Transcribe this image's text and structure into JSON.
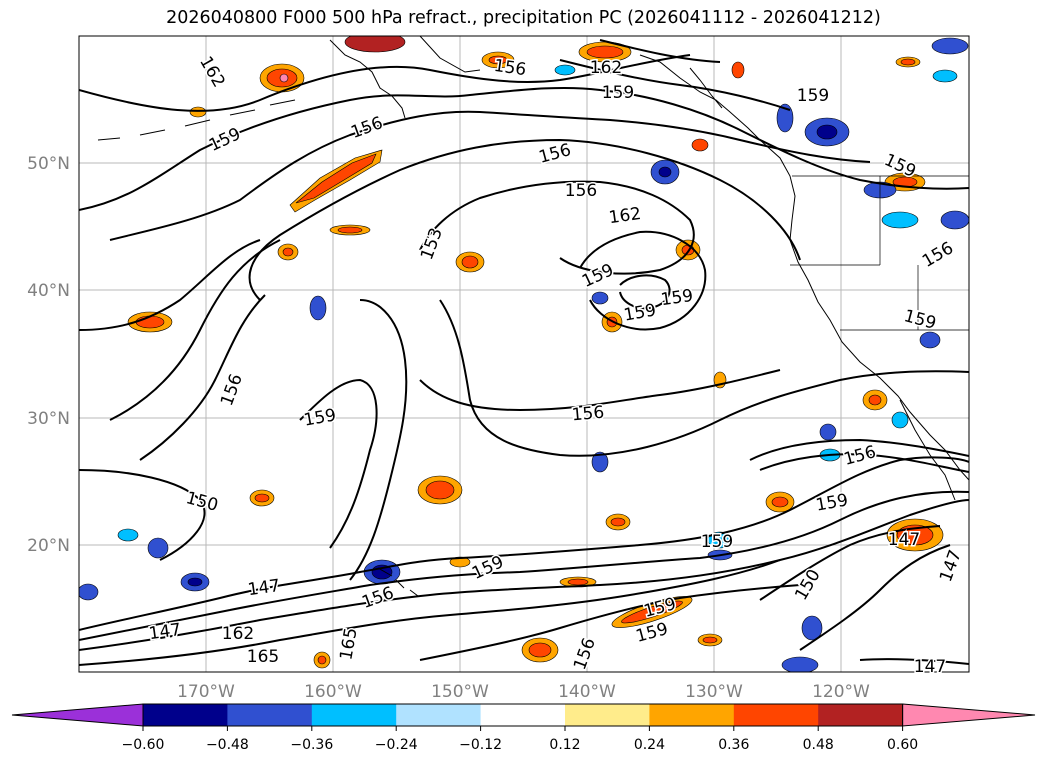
{
  "title": "2026040800 F000 500 hPa refract., precipitation PC (2026041112 - 2026041212)",
  "map": {
    "lat_labels": [
      "50°N",
      "40°N",
      "30°N",
      "20°N"
    ],
    "lon_labels": [
      "170°W",
      "160°W",
      "150°W",
      "140°W",
      "130°W",
      "120°W"
    ],
    "contour_levels": [
      147,
      150,
      153,
      156,
      159,
      162,
      165
    ],
    "contour_labels": [
      {
        "text": "162"
      },
      {
        "text": "159"
      },
      {
        "text": "156"
      },
      {
        "text": "162"
      },
      {
        "text": "159"
      },
      {
        "text": "159"
      },
      {
        "text": "156"
      },
      {
        "text": "156"
      },
      {
        "text": "156"
      },
      {
        "text": "162"
      },
      {
        "text": "159"
      },
      {
        "text": "159"
      },
      {
        "text": "159"
      },
      {
        "text": "159"
      },
      {
        "text": "153"
      },
      {
        "text": "156"
      },
      {
        "text": "159"
      },
      {
        "text": "150"
      },
      {
        "text": "156"
      },
      {
        "text": "159"
      },
      {
        "text": "159"
      },
      {
        "text": "156"
      },
      {
        "text": "147"
      },
      {
        "text": "147"
      },
      {
        "text": "162"
      },
      {
        "text": "165"
      },
      {
        "text": "165"
      },
      {
        "text": "156"
      },
      {
        "text": "159"
      },
      {
        "text": "159"
      },
      {
        "text": "150"
      },
      {
        "text": "147"
      },
      {
        "text": "147"
      },
      {
        "text": "159"
      },
      {
        "text": "147"
      },
      {
        "text": "156"
      },
      {
        "text": "159"
      },
      {
        "text": "156"
      }
    ]
  },
  "colorbar": {
    "ticks": [
      "−0.60",
      "−0.48",
      "−0.36",
      "−0.24",
      "−0.12",
      "0.12",
      "0.24",
      "0.36",
      "0.48",
      "0.60"
    ],
    "colors": [
      "#9b30d9",
      "#00008b",
      "#3050d0",
      "#00bfff",
      "#b0e2ff",
      "#ffffff",
      "#ffec8b",
      "#ffa500",
      "#ff4500",
      "#b22222",
      "#ff88b0"
    ]
  }
}
